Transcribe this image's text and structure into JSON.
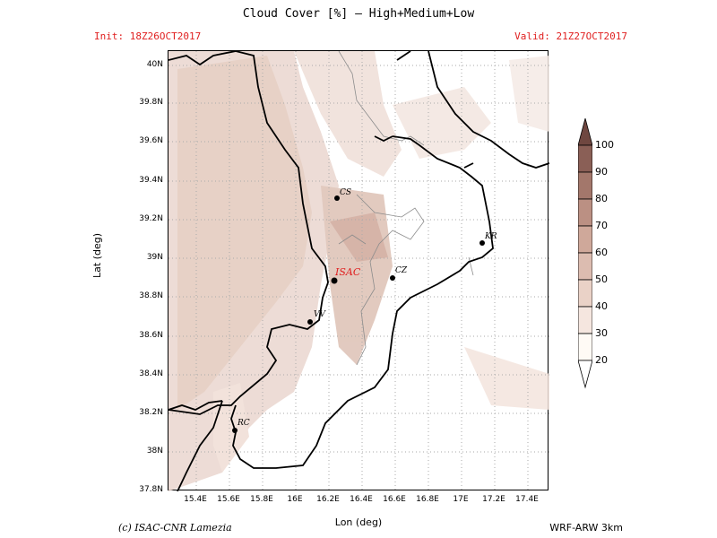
{
  "title": "Cloud Cover [%] — High+Medium+Low",
  "init_label": "Init: 18Z26OCT2017",
  "valid_label": "Valid: 21Z27OCT2017",
  "y_axis_label": "Lat (deg)",
  "x_axis_label": "Lon (deg)",
  "credit": "(c) ISAC-CNR Lamezia",
  "model": "WRF-ARW 3km",
  "lat_ticks": [
    "40N",
    "39.8N",
    "39.6N",
    "39.4N",
    "39.2N",
    "39N",
    "38.8N",
    "38.6N",
    "38.4N",
    "38.2N",
    "38N",
    "37.8N"
  ],
  "lon_ticks": [
    "15.4E",
    "15.6E",
    "15.8E",
    "16E",
    "16.2E",
    "16.4E",
    "16.6E",
    "16.8E",
    "17E",
    "17.2E",
    "17.4E"
  ],
  "cities": [
    {
      "label": "CS",
      "color": "#000000"
    },
    {
      "label": "KR",
      "color": "#000000"
    },
    {
      "label": "ISAC",
      "color": "#e02020"
    },
    {
      "label": "CZ",
      "color": "#000000"
    },
    {
      "label": "VV",
      "color": "#000000"
    },
    {
      "label": "RC",
      "color": "#000000"
    }
  ],
  "colorbar": {
    "labels": [
      "100",
      "90",
      "80",
      "70",
      "60",
      "50",
      "40",
      "30",
      "20"
    ],
    "colors": [
      "#fffaf5",
      "#f5e6df",
      "#ead2c7",
      "#dcbcb0",
      "#cfa89a",
      "#bb9083",
      "#a3776b",
      "#8a5f56",
      "#6f4740"
    ]
  }
}
